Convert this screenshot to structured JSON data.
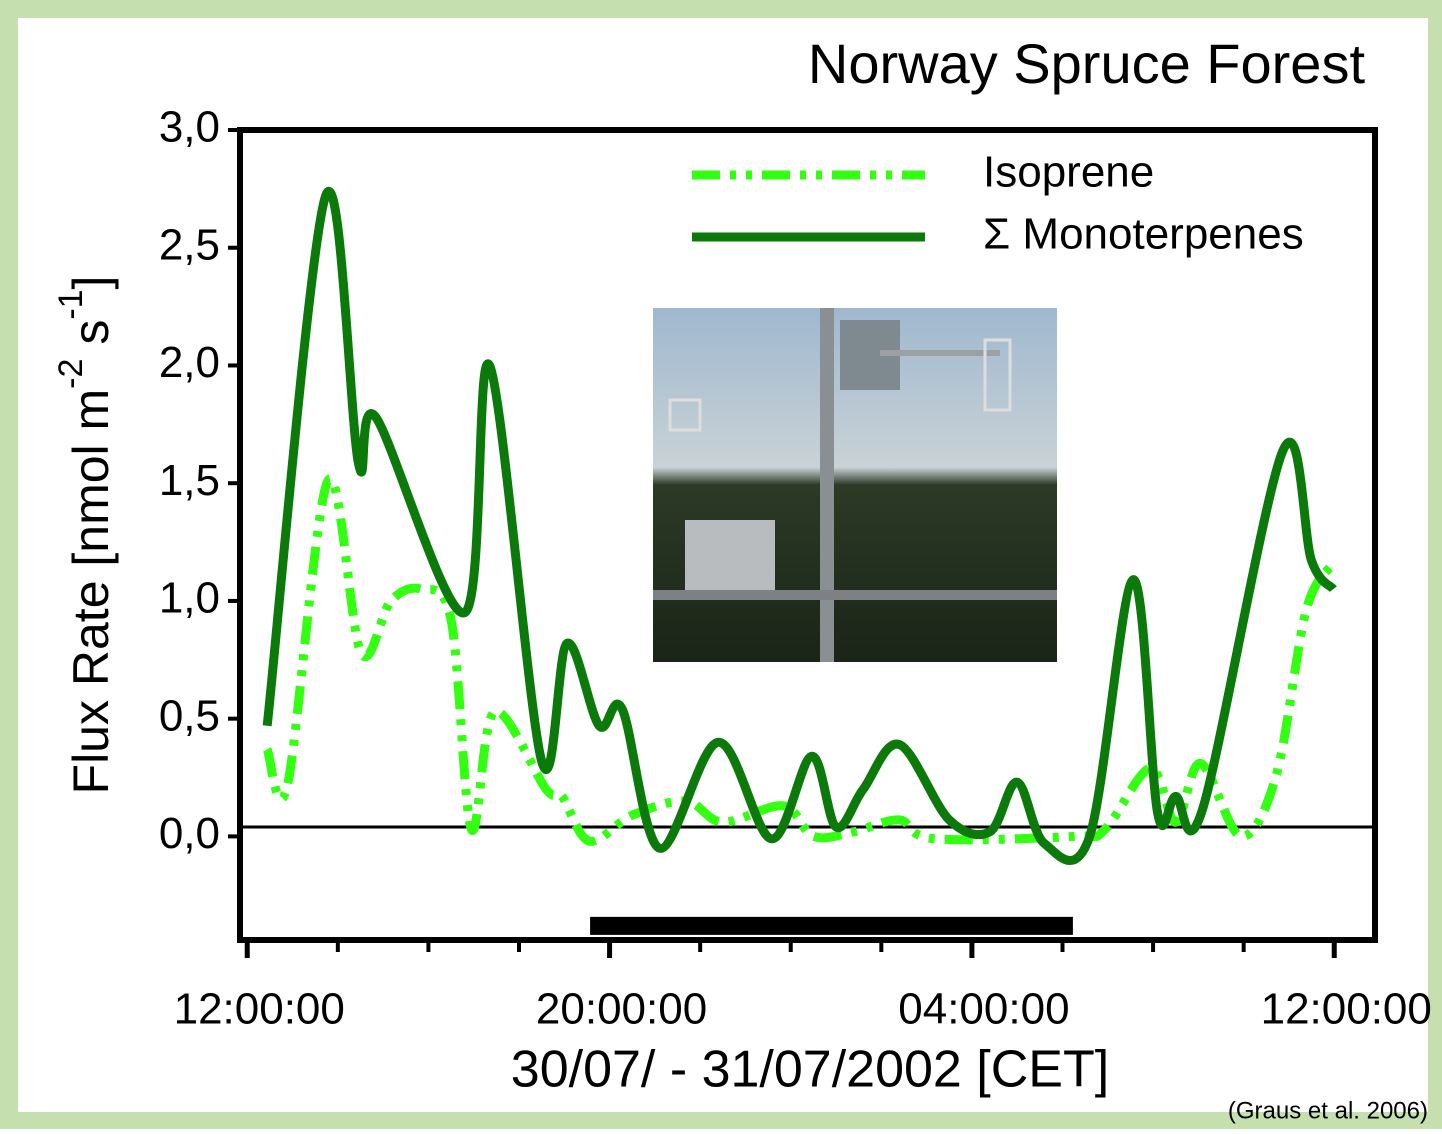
{
  "chart_data": {
    "type": "line",
    "title": "Norway Spruce Forest",
    "x_label": "30/07/ - 31/07/2002 [CET]",
    "y_label": {
      "text": "Flux Rate [nmol m",
      "sup1": "-2",
      "mid": " s",
      "sup2": "-1",
      "end": "]"
    },
    "source": "(Graus et al. 2006)",
    "xlim": [
      -0.16,
      24.9
    ],
    "ylim": [
      -0.44,
      3.0
    ],
    "xticks": [
      {
        "value": 0,
        "label": "12:00:00"
      },
      {
        "value": 8,
        "label": "20:00:00"
      },
      {
        "value": 16,
        "label": "04:00:00"
      },
      {
        "value": 24,
        "label": "12:00:00"
      }
    ],
    "xminor_ticks": [
      2,
      4,
      6,
      10,
      12,
      14,
      18,
      20,
      22
    ],
    "yticks": [
      {
        "value": 0,
        "label": "0,0"
      },
      {
        "value": 0.5,
        "label": "0,5"
      },
      {
        "value": 1,
        "label": "1,0"
      },
      {
        "value": 1.5,
        "label": "1,5"
      },
      {
        "value": 2,
        "label": "2,0"
      },
      {
        "value": 2.5,
        "label": "2,5"
      },
      {
        "value": 3,
        "label": "3,0"
      }
    ],
    "reference_line": 0.04,
    "night_bar": {
      "x": [
        7.57,
        18.23
      ],
      "y": -0.38
    },
    "legend": "top-right",
    "series": [
      {
        "name": "Isoprene",
        "color": "#33ff11",
        "dash": "dash-dot-dot",
        "x": [
          0.44,
          0.89,
          1.78,
          2.51,
          3.17,
          3.84,
          4.5,
          4.95,
          5.46,
          6.6,
          6.95,
          7.55,
          8.5,
          9.68,
          10.5,
          11.84,
          12.5,
          13.4,
          14.4,
          15.16,
          18.27,
          18.94,
          19.94,
          20.5,
          21.05,
          21.94,
          22.72,
          23.38,
          23.98
        ],
        "values": [
          0.37,
          0.22,
          1.51,
          0.78,
          1.0,
          1.05,
          0.92,
          0.03,
          0.53,
          0.2,
          0.17,
          -0.02,
          0.09,
          0.15,
          0.06,
          0.13,
          0.0,
          0.02,
          0.07,
          -0.01,
          0.0,
          0.03,
          0.29,
          0.06,
          0.31,
          0.0,
          0.26,
          0.96,
          1.16
        ]
      },
      {
        "name": "Σ Monoterpenes",
        "color": "#0b7a0b",
        "dash": "solid",
        "x": [
          0.44,
          1.73,
          2.46,
          2.84,
          4.8,
          5.35,
          6.5,
          7.06,
          7.77,
          8.28,
          9.1,
          10.4,
          11.57,
          12.46,
          13.0,
          13.6,
          14.4,
          15.5,
          16.4,
          17.0,
          17.6,
          18.6,
          19.56,
          20.1,
          20.5,
          21.1,
          22.87,
          23.5,
          23.98
        ],
        "values": [
          0.47,
          2.72,
          1.58,
          1.78,
          0.95,
          2.0,
          0.32,
          0.82,
          0.47,
          0.54,
          -0.05,
          0.4,
          -0.01,
          0.34,
          0.04,
          0.2,
          0.39,
          0.07,
          0.02,
          0.23,
          -0.03,
          0.0,
          1.09,
          0.1,
          0.17,
          0.12,
          1.64,
          1.17,
          1.05
        ]
      }
    ]
  }
}
